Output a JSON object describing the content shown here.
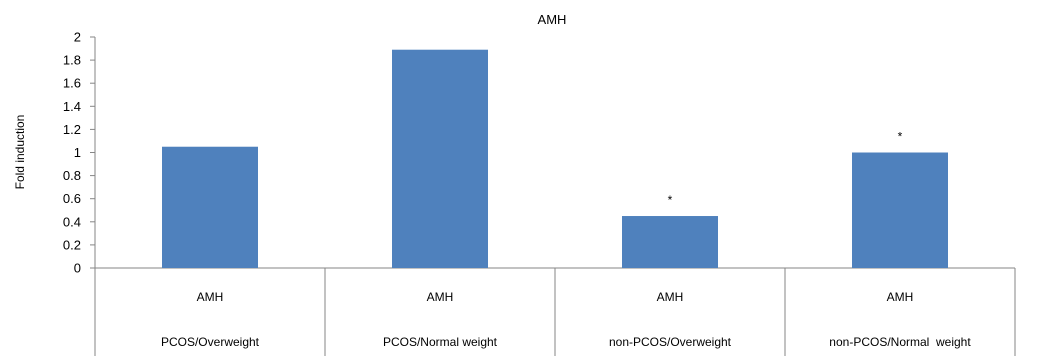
{
  "chart_data": {
    "type": "bar",
    "title": "AMH",
    "ylabel": "Fold induction",
    "xlabel": "",
    "ylim": [
      0,
      2
    ],
    "yticks": [
      "0",
      "0.2",
      "0.4",
      "0.6",
      "0.8",
      "1",
      "1.2",
      "1.4",
      "1.6",
      "1.8",
      "2"
    ],
    "categories": [
      {
        "top": "AMH",
        "bottom": "PCOS/Overweight"
      },
      {
        "top": "AMH",
        "bottom": "PCOS/Normal weight"
      },
      {
        "top": "AMH",
        "bottom": "non-PCOS/Overweight"
      },
      {
        "top": "AMH",
        "bottom": "non-PCOS/Normal  weight"
      }
    ],
    "series": [
      {
        "values": [
          1.05,
          1.89,
          0.45,
          1.0
        ]
      }
    ],
    "annotations": [
      "",
      "",
      "*",
      "*"
    ],
    "bar_color": "#4F81BD",
    "grid": false,
    "legend": "none"
  }
}
